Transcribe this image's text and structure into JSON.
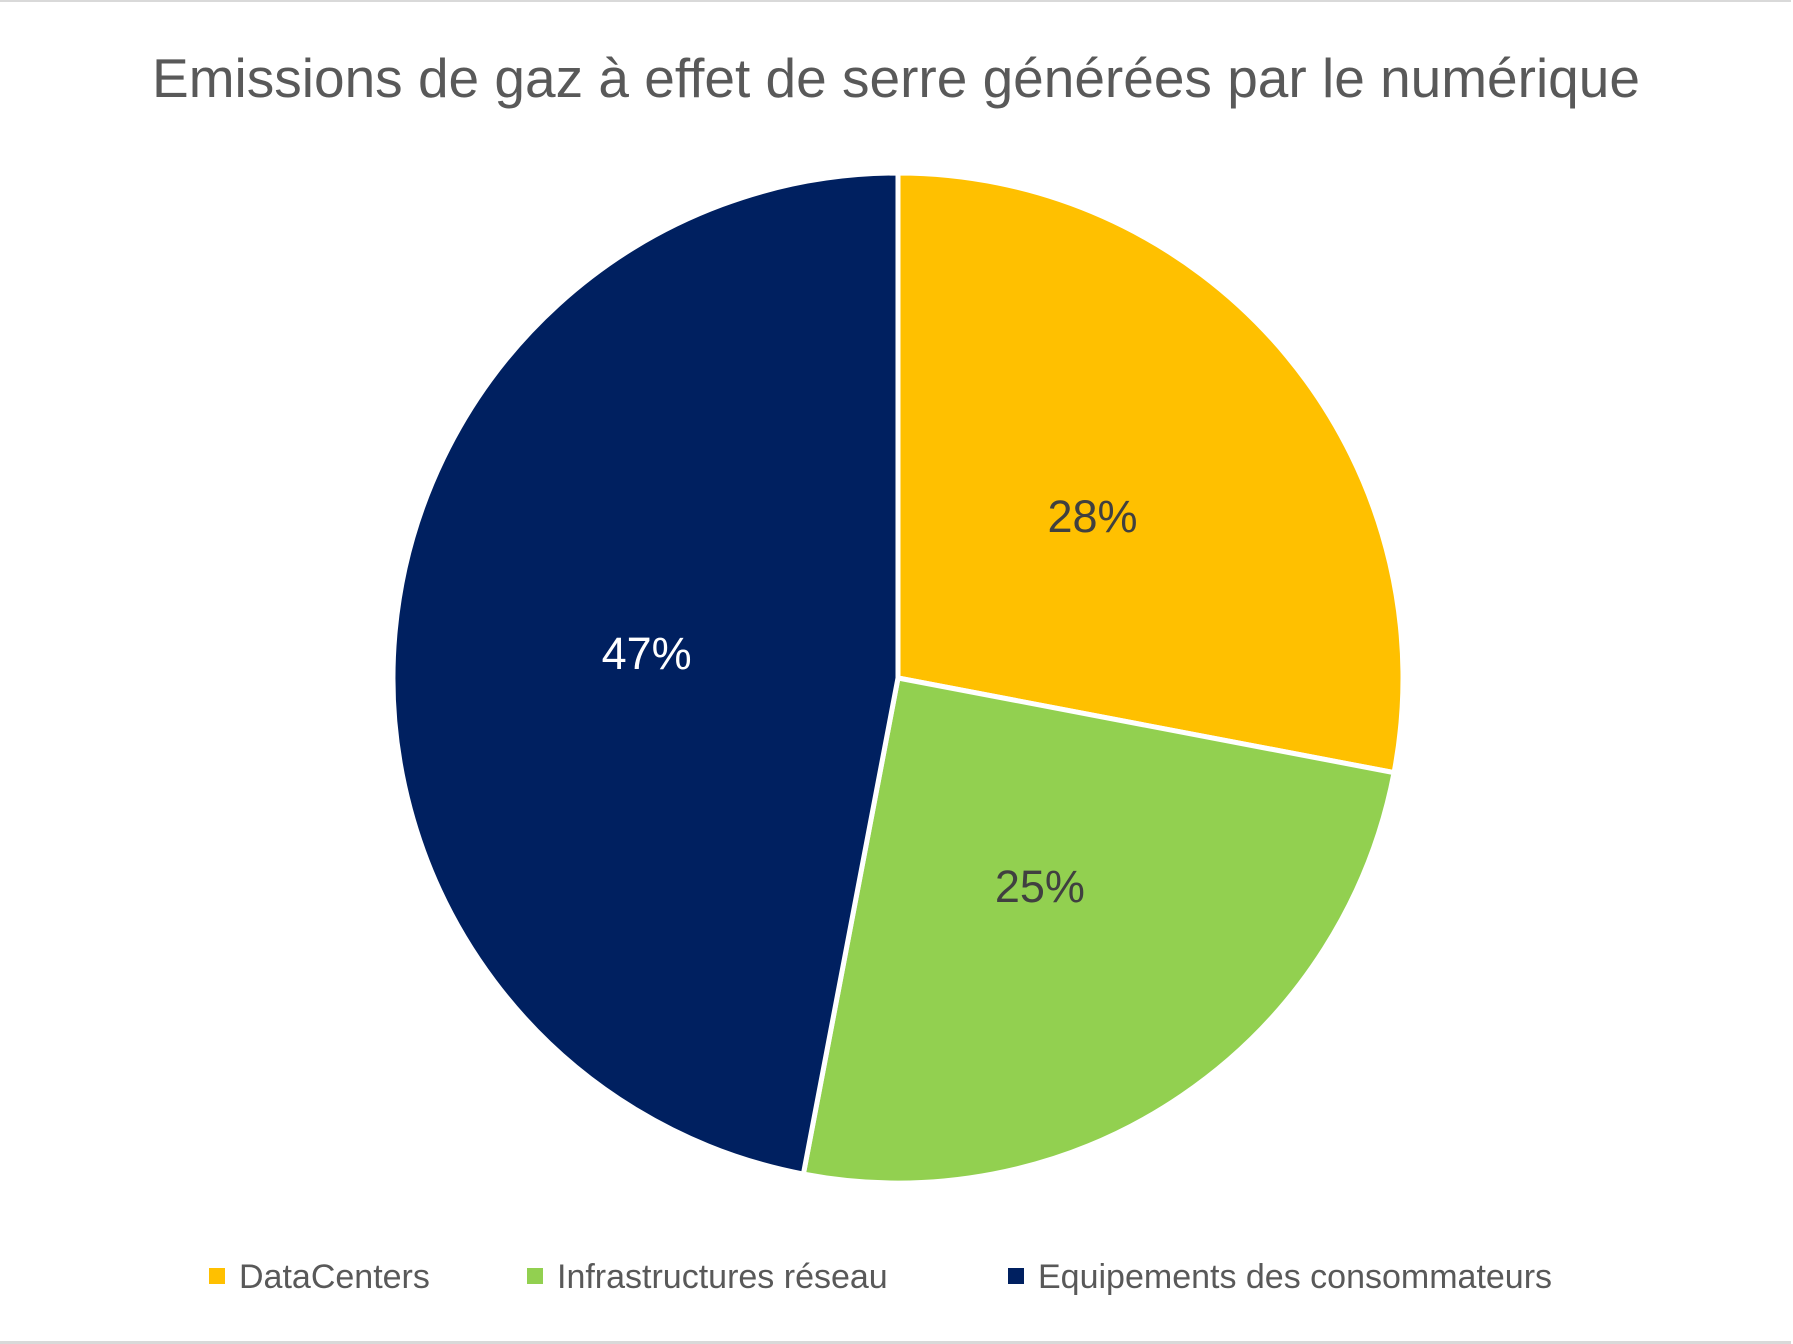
{
  "chart_data": {
    "type": "pie",
    "title": "Emissions de gaz à effet de serre générées par le numérique",
    "categories": [
      "DataCenters",
      "Infrastructures réseau",
      "Equipements des consommateurs"
    ],
    "values": [
      28,
      25,
      47
    ],
    "labels": [
      "28%",
      "25%",
      "47%"
    ],
    "colors": [
      "#FFC000",
      "#92D050",
      "#002060"
    ],
    "label_colors": [
      "#404040",
      "#404040",
      "#FFFFFF"
    ],
    "legend_position": "bottom",
    "start_angle": "top, clockwise"
  }
}
